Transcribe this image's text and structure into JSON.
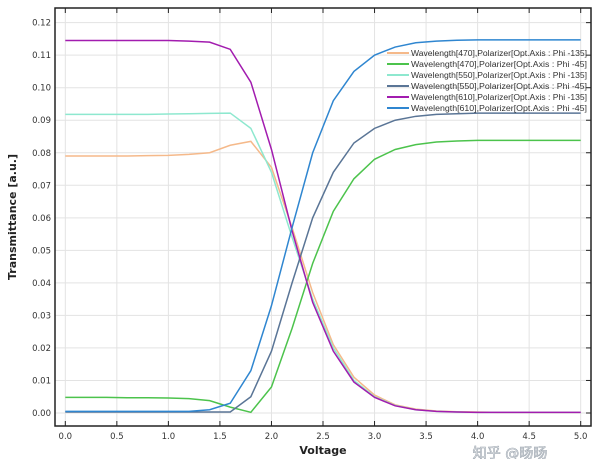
{
  "chart_data": {
    "type": "line",
    "title": "",
    "xlabel": "Voltage",
    "ylabel": "Transmittance [a.u.]",
    "xlim": [
      -0.1,
      5.1
    ],
    "ylim": [
      -0.004,
      0.1245
    ],
    "xticks": [
      "0.0",
      "0.5",
      "1.0",
      "1.5",
      "2.0",
      "2.5",
      "3.0",
      "3.5",
      "4.0",
      "4.5",
      "5.0"
    ],
    "yticks": [
      "0.00",
      "0.01",
      "0.02",
      "0.03",
      "0.04",
      "0.05",
      "0.06",
      "0.07",
      "0.08",
      "0.09",
      "0.10",
      "0.11",
      "0.12"
    ],
    "grid": true,
    "legend_position": "top-right",
    "x": [
      0,
      0.2,
      0.4,
      0.6,
      0.8,
      1.0,
      1.2,
      1.4,
      1.6,
      1.8,
      2.0,
      2.2,
      2.4,
      2.6,
      2.8,
      3.0,
      3.2,
      3.4,
      3.6,
      3.8,
      4.0,
      4.2,
      4.4,
      4.6,
      4.8,
      5.0
    ],
    "series": [
      {
        "name": "Wavelength[470],Polarizer[Opt.Axis : Phi -135]",
        "color": "#f5b98a",
        "values": [
          0.079,
          0.079,
          0.079,
          0.079,
          0.0791,
          0.0792,
          0.0795,
          0.08,
          0.0823,
          0.0835,
          0.0755,
          0.057,
          0.037,
          0.021,
          0.011,
          0.0055,
          0.0025,
          0.0012,
          0.0006,
          0.0004,
          0.0003,
          0.0002,
          0.0002,
          0.0002,
          0.0002,
          0.0002
        ]
      },
      {
        "name": "Wavelength[470],Polarizer[Opt.Axis : Phi -45]",
        "color": "#4cc34c",
        "values": [
          0.0048,
          0.0048,
          0.0048,
          0.0047,
          0.0047,
          0.0046,
          0.0044,
          0.0038,
          0.0018,
          0.0002,
          0.008,
          0.026,
          0.046,
          0.062,
          0.072,
          0.078,
          0.081,
          0.0825,
          0.0833,
          0.0836,
          0.0838,
          0.0838,
          0.0838,
          0.0838,
          0.0838,
          0.0838
        ]
      },
      {
        "name": "Wavelength[550],Polarizer[Opt.Axis : Phi -135]",
        "color": "#8ee8cf",
        "values": [
          0.0918,
          0.0918,
          0.0918,
          0.0918,
          0.0918,
          0.0919,
          0.092,
          0.0921,
          0.0922,
          0.0875,
          0.074,
          0.054,
          0.035,
          0.02,
          0.01,
          0.005,
          0.0023,
          0.001,
          0.0005,
          0.0003,
          0.0002,
          0.0002,
          0.0002,
          0.0002,
          0.0002,
          0.0002
        ]
      },
      {
        "name": "Wavelength[550],Polarizer[Opt.Axis : Phi -45]",
        "color": "#5a7596",
        "values": [
          0.0003,
          0.0003,
          0.0003,
          0.0003,
          0.0003,
          0.0003,
          0.0003,
          0.0003,
          0.0003,
          0.005,
          0.019,
          0.04,
          0.06,
          0.074,
          0.083,
          0.0875,
          0.09,
          0.0912,
          0.0918,
          0.092,
          0.0922,
          0.0922,
          0.0922,
          0.0922,
          0.0922,
          0.0922
        ]
      },
      {
        "name": "Wavelength[610],Polarizer[Opt.Axis : Phi -135]",
        "color": "#a21caf",
        "values": [
          0.1145,
          0.1145,
          0.1145,
          0.1145,
          0.1145,
          0.1145,
          0.1143,
          0.114,
          0.1118,
          0.1017,
          0.081,
          0.056,
          0.034,
          0.019,
          0.0095,
          0.0048,
          0.0022,
          0.001,
          0.0005,
          0.0003,
          0.0002,
          0.0002,
          0.0002,
          0.0002,
          0.0002,
          0.0002
        ]
      },
      {
        "name": "Wavelength[610],Polarizer[Opt.Axis : Phi -45]",
        "color": "#2f86d0",
        "values": [
          0.0005,
          0.0005,
          0.0005,
          0.0005,
          0.0005,
          0.0005,
          0.0005,
          0.001,
          0.003,
          0.013,
          0.033,
          0.057,
          0.08,
          0.096,
          0.105,
          0.11,
          0.1125,
          0.1138,
          0.1143,
          0.1146,
          0.1147,
          0.1147,
          0.1147,
          0.1147,
          0.1147,
          0.1147
        ]
      }
    ]
  },
  "watermark": "知乎 @旸旸"
}
